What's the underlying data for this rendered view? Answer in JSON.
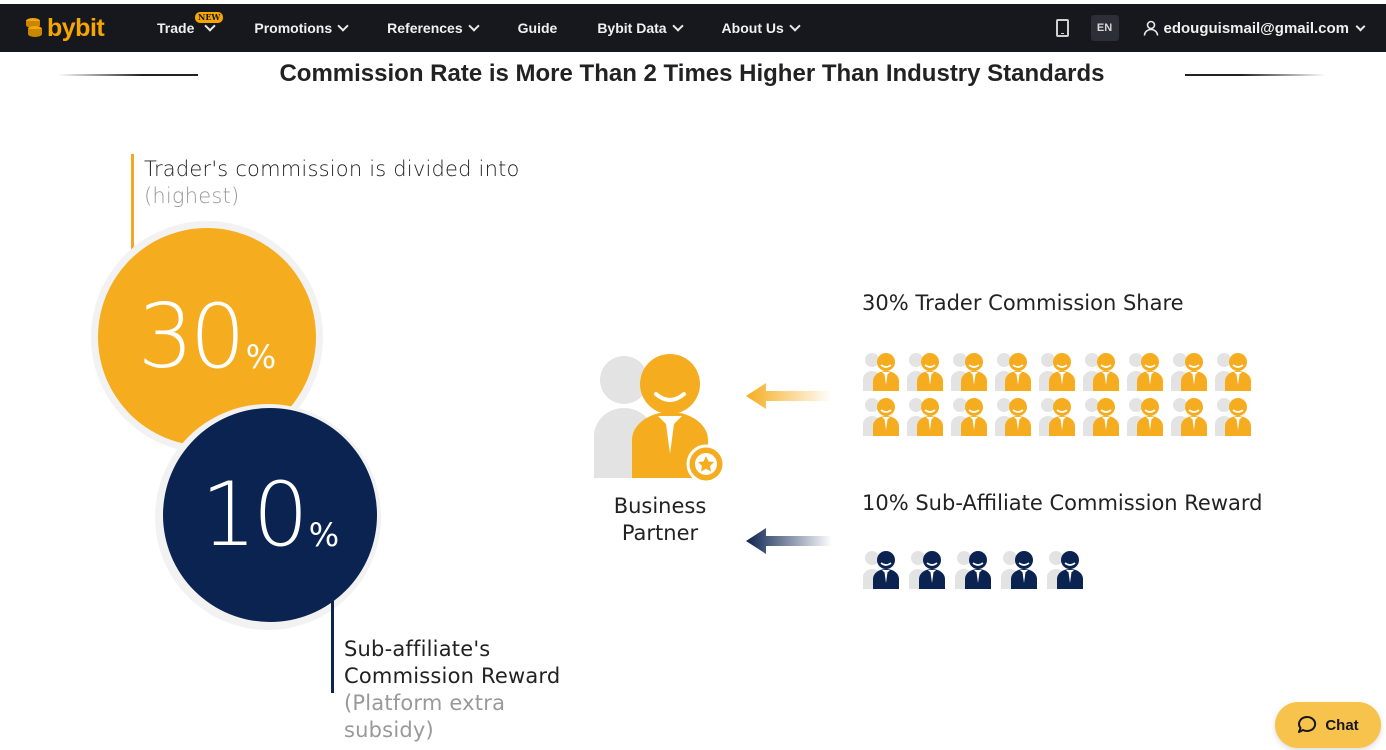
{
  "nav": {
    "logo": "bybit",
    "items": [
      {
        "label": "Trade",
        "badge": "NEW",
        "has_dropdown": true
      },
      {
        "label": "Promotions",
        "has_dropdown": true
      },
      {
        "label": "References",
        "has_dropdown": true
      },
      {
        "label": "Guide",
        "has_dropdown": false
      },
      {
        "label": "Bybit Data",
        "has_dropdown": true
      },
      {
        "label": "About Us",
        "has_dropdown": true
      }
    ],
    "lang": "EN",
    "user_email": "edouguismail@gmail.com",
    "icons": {
      "device": "tablet-icon",
      "user": "user-icon",
      "dropdown": "chevron-down-icon"
    }
  },
  "page": {
    "title": "Commission Rate is More Than 2 Times Higher Than Industry Standards"
  },
  "left": {
    "trader_text": "Trader's commission is divided into",
    "trader_sub": "(highest)",
    "trader_pct": "30",
    "pct_symbol": "%",
    "affiliate_pct": "10",
    "affiliate_text_1": "Sub-affiliate's",
    "affiliate_text_2": "Commission Reward",
    "affiliate_sub_1": "(Platform extra",
    "affiliate_sub_2": "subsidy)"
  },
  "center": {
    "partner_line1": "Business",
    "partner_line2": "Partner"
  },
  "right": {
    "trader_share_label": "30% Trader Commission Share",
    "sub_reward_label": "10% Sub-Affiliate Commission Reward",
    "trader_people_count": 18,
    "sub_people_count": 5
  },
  "chat": {
    "label": "Chat"
  },
  "colors": {
    "accent_yellow": "#f5ad1f",
    "navy": "#0b2350",
    "nav_bg": "#17181e",
    "chat_bg": "#f7c34c"
  }
}
